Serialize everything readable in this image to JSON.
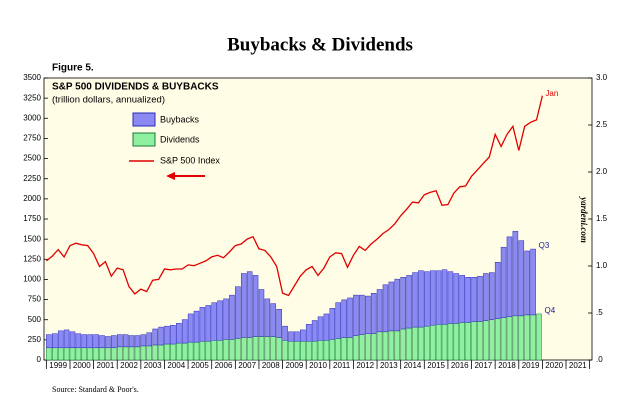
{
  "chart_data": {
    "type": "bar",
    "title": "Buybacks & Dividends",
    "figure_label": "Figure 5.",
    "subtitle": "S&P 500 DIVIDENDS & BUYBACKS",
    "unit_note": "(trillion dollars, annualized)",
    "watermark": "yardeni.com",
    "source": "Source: Standard & Poor's.",
    "x": [
      1999,
      1999.25,
      1999.5,
      1999.75,
      2000,
      2000.25,
      2000.5,
      2000.75,
      2001,
      2001.25,
      2001.5,
      2001.75,
      2002,
      2002.25,
      2002.5,
      2002.75,
      2003,
      2003.25,
      2003.5,
      2003.75,
      2004,
      2004.25,
      2004.5,
      2004.75,
      2005,
      2005.25,
      2005.5,
      2005.75,
      2006,
      2006.25,
      2006.5,
      2006.75,
      2007,
      2007.25,
      2007.5,
      2007.75,
      2008,
      2008.25,
      2008.5,
      2008.75,
      2009,
      2009.25,
      2009.5,
      2009.75,
      2010,
      2010.25,
      2010.5,
      2010.75,
      2011,
      2011.25,
      2011.5,
      2011.75,
      2012,
      2012.25,
      2012.5,
      2012.75,
      2013,
      2013.25,
      2013.5,
      2013.75,
      2014,
      2014.25,
      2014.5,
      2014.75,
      2015,
      2015.25,
      2015.5,
      2015.75,
      2016,
      2016.25,
      2016.5,
      2016.75,
      2017,
      2017.25,
      2017.5,
      2017.75,
      2018,
      2018.25,
      2018.5,
      2018.75,
      2019,
      2019.25,
      2019.5,
      2019.75,
      2020
    ],
    "xlim": [
      1998.9,
      2022.1
    ],
    "year_labels": [
      "1999",
      "2000",
      "2001",
      "2002",
      "2003",
      "2004",
      "2005",
      "2006",
      "2007",
      "2008",
      "2009",
      "2010",
      "2011",
      "2012",
      "2013",
      "2014",
      "2015",
      "2016",
      "2017",
      "2018",
      "2019",
      "2020",
      "2021"
    ],
    "year_starts": [
      1999,
      2000,
      2001,
      2002,
      2003,
      2004,
      2005,
      2006,
      2007,
      2008,
      2009,
      2010,
      2011,
      2012,
      2013,
      2014,
      2015,
      2016,
      2017,
      2018,
      2019,
      2020,
      2021,
      2022
    ],
    "ylim": [
      0,
      3500
    ],
    "yticks": [
      0,
      250,
      500,
      750,
      1000,
      1250,
      1500,
      1750,
      2000,
      2250,
      2500,
      2750,
      3000,
      3250,
      3500
    ],
    "y2lim": [
      0,
      3.0
    ],
    "y2ticks": [
      {
        "value": 0,
        "label": ".0"
      },
      {
        "value": 0.5,
        "label": ".5"
      },
      {
        "value": 1,
        "label": "1.0"
      },
      {
        "value": 1.5,
        "label": "1.5"
      },
      {
        "value": 2,
        "label": "2.0"
      },
      {
        "value": 2.5,
        "label": "2.5"
      },
      {
        "value": 3,
        "label": "3.0"
      }
    ],
    "series": [
      {
        "name": "Dividends",
        "type": "bar",
        "axis": "y2",
        "color": "#8ff0a0",
        "stroke": "#1a7a3a",
        "end_label": "Q4",
        "values": [
          0.13,
          0.13,
          0.13,
          0.13,
          0.13,
          0.13,
          0.13,
          0.13,
          0.13,
          0.13,
          0.13,
          0.13,
          0.14,
          0.14,
          0.14,
          0.14,
          0.15,
          0.15,
          0.16,
          0.16,
          0.17,
          0.17,
          0.18,
          0.18,
          0.19,
          0.19,
          0.2,
          0.2,
          0.21,
          0.21,
          0.22,
          0.22,
          0.23,
          0.24,
          0.24,
          0.25,
          0.25,
          0.25,
          0.25,
          0.24,
          0.21,
          0.2,
          0.2,
          0.2,
          0.2,
          0.2,
          0.21,
          0.21,
          0.22,
          0.23,
          0.24,
          0.24,
          0.26,
          0.27,
          0.28,
          0.28,
          0.3,
          0.3,
          0.31,
          0.31,
          0.33,
          0.34,
          0.35,
          0.35,
          0.36,
          0.37,
          0.38,
          0.38,
          0.39,
          0.39,
          0.4,
          0.4,
          0.41,
          0.41,
          0.42,
          0.43,
          0.44,
          0.45,
          0.46,
          0.47,
          0.47,
          0.48,
          0.48,
          0.49,
          null
        ]
      },
      {
        "name": "Buybacks",
        "type": "bar",
        "axis": "y2",
        "color": "#8a8af2",
        "stroke": "#2a2ab8",
        "end_label": "Q3",
        "values": [
          0.14,
          0.15,
          0.18,
          0.19,
          0.17,
          0.15,
          0.14,
          0.14,
          0.14,
          0.13,
          0.12,
          0.13,
          0.13,
          0.13,
          0.12,
          0.12,
          0.12,
          0.14,
          0.17,
          0.19,
          0.19,
          0.2,
          0.21,
          0.25,
          0.3,
          0.33,
          0.36,
          0.38,
          0.4,
          0.42,
          0.43,
          0.47,
          0.55,
          0.68,
          0.7,
          0.65,
          0.5,
          0.4,
          0.35,
          0.3,
          0.15,
          0.1,
          0.1,
          0.12,
          0.18,
          0.22,
          0.25,
          0.28,
          0.33,
          0.38,
          0.4,
          0.42,
          0.43,
          0.42,
          0.4,
          0.43,
          0.45,
          0.5,
          0.52,
          0.55,
          0.55,
          0.56,
          0.58,
          0.6,
          0.58,
          0.58,
          0.57,
          0.58,
          0.55,
          0.53,
          0.5,
          0.48,
          0.47,
          0.48,
          0.5,
          0.5,
          0.6,
          0.75,
          0.85,
          0.9,
          0.8,
          0.68,
          0.7,
          null,
          null
        ]
      },
      {
        "name": "S&P 500 Index",
        "type": "line",
        "axis": "y",
        "color": "#e00000",
        "end_label": "Jan",
        "values": [
          1230,
          1290,
          1370,
          1280,
          1420,
          1450,
          1430,
          1420,
          1320,
          1160,
          1220,
          1040,
          1140,
          1120,
          910,
          820,
          880,
          850,
          990,
          1000,
          1130,
          1120,
          1130,
          1130,
          1180,
          1170,
          1200,
          1230,
          1280,
          1300,
          1270,
          1340,
          1420,
          1440,
          1500,
          1530,
          1380,
          1360,
          1280,
          1160,
          830,
          800,
          920,
          1040,
          1120,
          1160,
          1050,
          1140,
          1280,
          1330,
          1320,
          1150,
          1300,
          1410,
          1360,
          1440,
          1500,
          1570,
          1620,
          1690,
          1790,
          1870,
          1960,
          1950,
          2050,
          2080,
          2100,
          1920,
          1930,
          2070,
          2150,
          2160,
          2280,
          2360,
          2440,
          2520,
          2800,
          2650,
          2800,
          2900,
          2600,
          2900,
          2950,
          2980,
          3280
        ]
      }
    ]
  }
}
